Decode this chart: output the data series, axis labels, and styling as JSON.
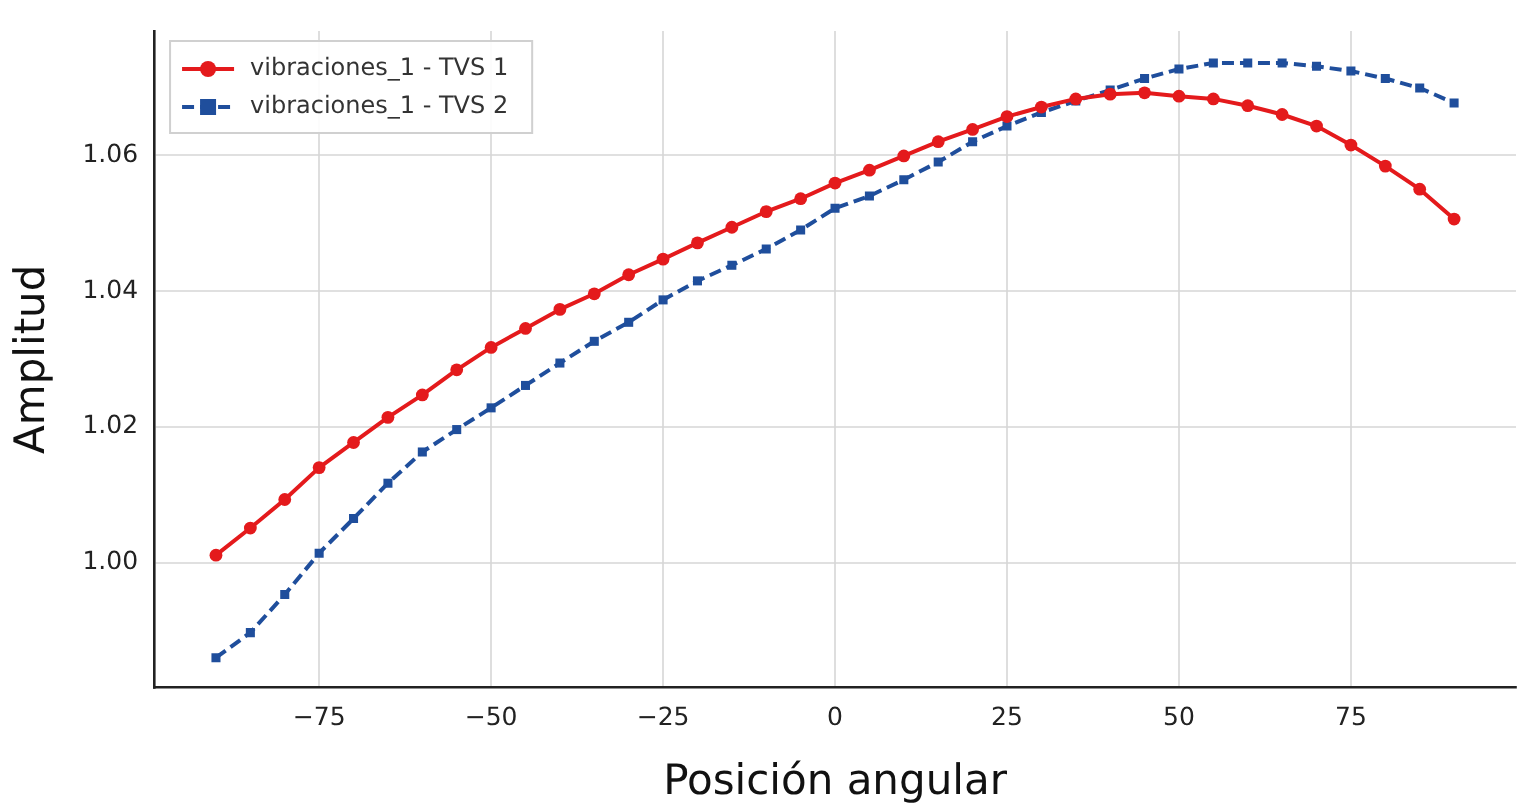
{
  "chart_data": {
    "type": "line",
    "xlabel": "Posición angular",
    "ylabel": "Amplitud",
    "xlim": [
      -99,
      99
    ],
    "ylim": [
      0.9816,
      1.0783
    ],
    "xticks": [
      {
        "value": -75,
        "label": "−75"
      },
      {
        "value": -50,
        "label": "−50"
      },
      {
        "value": -25,
        "label": "−25"
      },
      0,
      25,
      50,
      75
    ],
    "yticks": [
      {
        "value": 1.0,
        "label": "1.00"
      },
      {
        "value": 1.02,
        "label": "1.02"
      },
      {
        "value": 1.04,
        "label": "1.04"
      },
      {
        "value": 1.06,
        "label": "1.06"
      }
    ],
    "grid": true,
    "legend": "top left",
    "x": [
      -90,
      -85,
      -80,
      -75,
      -70,
      -65,
      -60,
      -55,
      -50,
      -45,
      -40,
      -35,
      -30,
      -25,
      -20,
      -15,
      -10,
      -5,
      0,
      5,
      10,
      15,
      20,
      25,
      30,
      35,
      40,
      45,
      50,
      55,
      60,
      65,
      70,
      75,
      80,
      85,
      90
    ],
    "series": [
      {
        "name": "vibraciones_1 - TVS 1",
        "color": "#e41a1c",
        "marker": "circle",
        "line_style": "solid",
        "values": [
          1.0011,
          1.0051,
          1.0093,
          1.014,
          1.0177,
          1.0214,
          1.0247,
          1.0284,
          1.0317,
          1.0345,
          1.0373,
          1.0396,
          1.0424,
          1.0447,
          1.0471,
          1.0494,
          1.0517,
          1.0536,
          1.0559,
          1.0578,
          1.0599,
          1.062,
          1.0638,
          1.0657,
          1.0671,
          1.0683,
          1.069,
          1.0692,
          1.0687,
          1.0683,
          1.0673,
          1.066,
          1.0643,
          1.0615,
          1.0584,
          1.055,
          1.0506
        ]
      },
      {
        "name": "vibraciones_1 - TVS 2",
        "color": "#1f4e9c",
        "marker": "square",
        "line_style": "dashed",
        "values": [
          0.986,
          0.9897,
          0.9953,
          1.0014,
          1.0065,
          1.0117,
          1.0163,
          1.0196,
          1.0228,
          1.0261,
          1.0294,
          1.0326,
          1.0354,
          1.0387,
          1.0415,
          1.0438,
          1.0462,
          1.049,
          1.0522,
          1.054,
          1.0564,
          1.059,
          1.062,
          1.0643,
          1.0663,
          1.068,
          1.0696,
          1.0713,
          1.0727,
          1.0736,
          1.0736,
          1.0736,
          1.0731,
          1.0724,
          1.0713,
          1.0699,
          1.0677
        ]
      }
    ]
  }
}
